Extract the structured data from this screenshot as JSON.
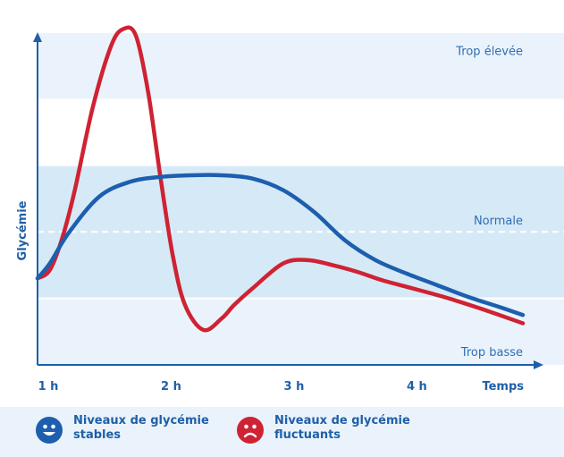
{
  "chart_data": {
    "type": "line",
    "title": "",
    "xlabel": "Temps",
    "ylabel": "Glycémie",
    "x_tick_labels": [
      "1 h",
      "2 h",
      "3 h",
      "4 h"
    ],
    "xlim": [
      1,
      4.95
    ],
    "ylim": [
      0,
      100
    ],
    "zones": [
      {
        "label": "Trop élevée",
        "range": [
          80,
          100
        ],
        "color": "#eaf3fb"
      },
      {
        "label": "Normale",
        "range": [
          20,
          60
        ],
        "color": "#d6e9f7",
        "reference_line": 40
      },
      {
        "label": "Trop basse",
        "range": [
          0,
          20
        ],
        "color": "#eaf3fb"
      }
    ],
    "series": [
      {
        "name": "Niveaux de glycémie stables",
        "color": "#1d5fae",
        "x": [
          1.0,
          1.1,
          1.25,
          1.5,
          1.75,
          2.0,
          2.25,
          2.5,
          2.75,
          3.0,
          3.25,
          3.5,
          3.75,
          4.0,
          4.25,
          4.5,
          4.75,
          4.95
        ],
        "y": [
          26,
          30.5,
          39.5,
          50.5,
          55,
          56.5,
          57,
          57,
          56,
          52.5,
          46,
          37.5,
          31.5,
          27.5,
          24,
          20.5,
          17.5,
          15
        ]
      },
      {
        "name": "Niveaux de glycémie fluctuants",
        "color": "#cf2233",
        "x": [
          1.0,
          1.1,
          1.2,
          1.3,
          1.45,
          1.6,
          1.7,
          1.8,
          1.9,
          2.0,
          2.1,
          2.2,
          2.35,
          2.5,
          2.6,
          2.75,
          3.0,
          3.2,
          3.4,
          3.6,
          3.8,
          4.0,
          4.3,
          4.6,
          4.95
        ],
        "y": [
          26,
          28.5,
          38,
          52,
          77.5,
          96,
          101,
          99,
          82,
          56.5,
          33,
          18,
          10.5,
          14,
          18,
          23,
          30.5,
          31.5,
          30,
          28,
          25.5,
          23.5,
          20.5,
          17,
          12.5
        ]
      }
    ],
    "legend_position": "bottom",
    "grid": false
  }
}
